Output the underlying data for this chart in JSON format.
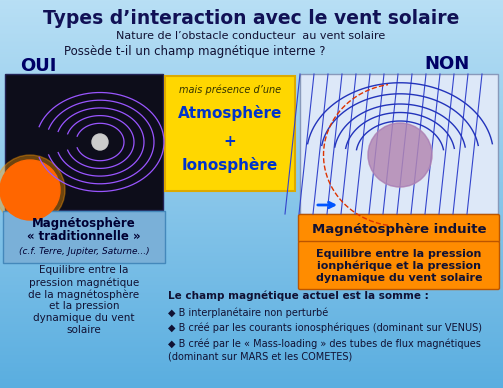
{
  "title": "Types d’interaction avec le vent solaire",
  "subtitle1": "Nature de l’obstacle conducteur  au vent solaire",
  "subtitle2": "Possède t-il un champ magnétique interne ?",
  "oui_label": "OUI",
  "non_label": "NON",
  "bg_top": "#a8d4f0",
  "bg_bottom": "#6ab4e8",
  "title_color": "#111155",
  "oui_color": "#000066",
  "non_color": "#000066",
  "yellow_box_bg": "#FFD700",
  "yellow_box_text1": "mais présence d’une",
  "yellow_box_text2": "Atmosphère",
  "yellow_box_text3": "+",
  "yellow_box_text4": "Ionosphère",
  "blue_box_bg": "#7ab0d8",
  "blue_box_text1": "Magnétosphère",
  "blue_box_text2": "« traditionnelle »",
  "blue_box_text3": "(c.f. Terre, Jupiter, Saturne...)",
  "equil_left": "Equilibre entre la\npression magnétique\nde la magnétosphère\net la pression\ndynamique du vent\nsolaire",
  "orange_box1_bg": "#FF8C00",
  "orange_box1_text": "Magnétosphère induite",
  "orange_box2_bg": "#FF8C00",
  "orange_box2_text": "Equilibre entre la pression\nionphérique et la pression\ndynamique du vent solaire",
  "bottom_bold": "Le champ magnétique actuel est la somme :",
  "bullet1": "◆ B interplanétaire non perturbé",
  "bullet2": "◆ B créé par les courants ionosphériques (dominant sur VENUS)",
  "bullet3": "◆ B créé par le « Mass-loading » des tubes de flux magnétiques (dominant sur MARS et les COMETES)"
}
